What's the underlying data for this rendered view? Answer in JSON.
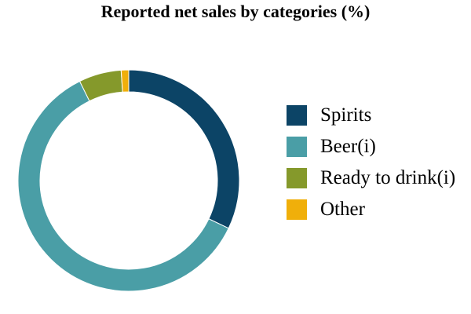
{
  "chart_data": {
    "type": "pie",
    "title": "Reported net sales by categories (%)",
    "donut": true,
    "categories": [
      "Spirits",
      "Beer(i)",
      "Ready to drink(i)",
      "Other"
    ],
    "values": [
      32.1,
      60.6,
      6.2,
      1.1
    ],
    "colors": [
      "#0c4466",
      "#4a9ea6",
      "#85992b",
      "#f0af0a"
    ],
    "legend_position": "right"
  }
}
